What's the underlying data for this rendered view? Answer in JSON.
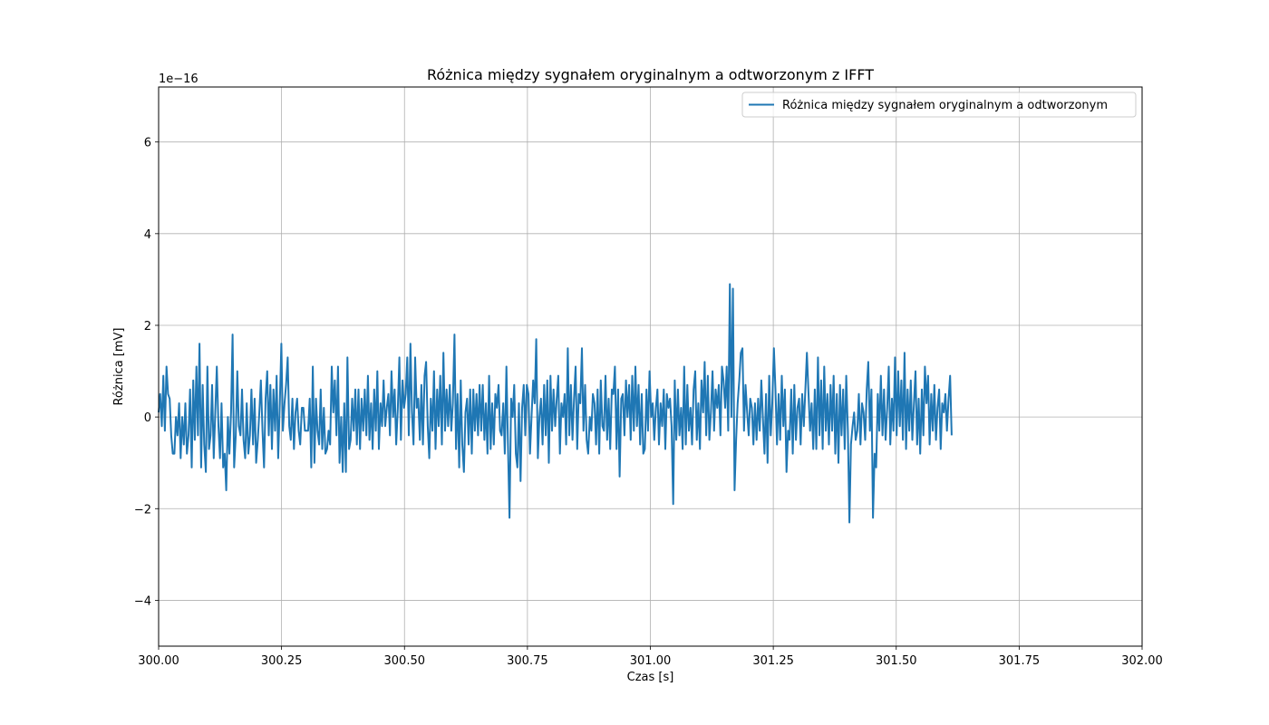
{
  "chart_data": {
    "type": "line",
    "title": "Różnica między sygnałem oryginalnym a odtworzonym z IFFT",
    "xlabel": "Czas [s]",
    "ylabel": "Różnica [mV]",
    "y_offset_label": "1e−16",
    "y_scale_factor": 1e-16,
    "xlim": [
      300.0,
      302.0
    ],
    "ylim": [
      -5.0,
      7.2
    ],
    "x_ticks": [
      300.0,
      300.25,
      300.5,
      300.75,
      301.0,
      301.25,
      301.5,
      301.75,
      302.0
    ],
    "x_tick_labels": [
      "300.00",
      "300.25",
      "300.50",
      "300.75",
      "301.00",
      "301.25",
      "301.50",
      "301.75",
      "302.00"
    ],
    "y_ticks": [
      -4,
      -2,
      0,
      2,
      4,
      6
    ],
    "y_tick_labels": [
      "−4",
      "−2",
      "0",
      "2",
      "4",
      "6"
    ],
    "grid": true,
    "legend_position": "top-right",
    "series": [
      {
        "name": "Różnica między sygnałem oryginalnym a odtworzonym",
        "color": "#1f77b4",
        "x_start": 300.0,
        "x_step": 0.0032,
        "values": [
          0.1,
          0.5,
          -0.2,
          0.9,
          -0.3,
          1.1,
          0.5,
          0.4,
          -0.4,
          -0.8,
          -0.8,
          0.0,
          -0.4,
          0.3,
          -0.9,
          0.0,
          -0.6,
          0.3,
          -0.8,
          -0.4,
          0.6,
          -1.1,
          0.8,
          -0.5,
          1.1,
          -0.4,
          1.6,
          -1.1,
          0.7,
          -0.6,
          -1.2,
          1.1,
          -0.7,
          -0.4,
          0.7,
          -0.9,
          0.1,
          1.1,
          -0.2,
          -0.9,
          0.3,
          -1.1,
          -0.8,
          -1.6,
          0.0,
          -0.8,
          0.1,
          1.8,
          -1.1,
          -0.4,
          1.0,
          -0.2,
          -0.4,
          0.6,
          -0.5,
          -0.9,
          0.3,
          -0.8,
          -0.4,
          0.6,
          -0.6,
          0.4,
          -1.0,
          -0.5,
          0.1,
          0.8,
          -0.3,
          -1.1,
          0.4,
          1.0,
          -0.4,
          0.7,
          -0.7,
          0.6,
          -0.3,
          0.9,
          -0.9,
          0.3,
          1.6,
          -0.3,
          0.3,
          0.7,
          1.3,
          -0.2,
          -0.5,
          0.4,
          -0.7,
          0.1,
          0.4,
          -0.3,
          -0.6,
          0.2,
          0.2,
          -0.3,
          -0.3,
          -0.3,
          0.4,
          -1.1,
          1.1,
          -1.0,
          0.4,
          -0.3,
          -0.6,
          0.6,
          -0.7,
          0.2,
          -0.8,
          -0.7,
          -0.3,
          -0.6,
          1.1,
          0.1,
          0.8,
          -0.4,
          1.1,
          -1.0,
          0.0,
          -1.2,
          0.3,
          -1.2,
          1.3,
          -0.7,
          -0.5,
          0.4,
          -0.3,
          0.6,
          -0.6,
          0.6,
          -0.7,
          0.4,
          -0.3,
          0.6,
          -0.4,
          0.9,
          -0.5,
          0.3,
          -0.7,
          0.6,
          -0.3,
          1.0,
          -0.7,
          0.3,
          -0.2,
          0.8,
          -0.2,
          0.2,
          0.5,
          -0.4,
          1.0,
          0.0,
          0.6,
          -0.6,
          0.2,
          1.3,
          -0.5,
          0.8,
          0.2,
          0.5,
          1.3,
          -0.4,
          1.6,
          0.1,
          -0.6,
          1.3,
          0.2,
          0.4,
          -0.5,
          0.7,
          -0.6,
          0.9,
          1.2,
          -0.2,
          -0.9,
          0.4,
          -0.3,
          1.0,
          -0.7,
          0.6,
          -0.2,
          0.9,
          -0.6,
          1.4,
          -0.3,
          0.6,
          -0.2,
          0.7,
          -0.3,
          0.3,
          1.8,
          -0.7,
          0.5,
          -1.1,
          0.8,
          -0.6,
          -1.2,
          0.1,
          0.4,
          -0.6,
          0.6,
          -0.8,
          0.6,
          -0.3,
          0.5,
          -0.4,
          0.7,
          -0.3,
          0.7,
          -0.5,
          0.3,
          -0.8,
          0.9,
          -0.7,
          0.3,
          -0.6,
          0.5,
          0.2,
          0.7,
          -0.3,
          -0.4,
          0.3,
          -0.8,
          1.1,
          -0.6,
          -2.2,
          0.4,
          0.0,
          0.7,
          -0.8,
          -1.1,
          0.3,
          -1.4,
          0.2,
          0.7,
          -0.4,
          0.7,
          0.5,
          -0.8,
          0.0,
          0.8,
          0.3,
          1.7,
          -0.9,
          0.0,
          0.4,
          -0.6,
          0.7,
          -0.4,
          0.8,
          -1.0,
          0.9,
          -0.3,
          0.6,
          -0.2,
          0.4,
          0.9,
          -0.8,
          0.3,
          0.0,
          0.5,
          -0.6,
          1.5,
          -0.4,
          0.7,
          -0.5,
          0.4,
          1.1,
          -0.7,
          0.5,
          0.3,
          1.5,
          -0.3,
          0.7,
          -0.5,
          -0.8,
          0.0,
          -0.3,
          0.5,
          0.3,
          -0.6,
          0.6,
          -0.8,
          0.8,
          -0.2,
          -0.3,
          0.9,
          -0.5,
          0.4,
          -0.7,
          0.6,
          0.5,
          1.1,
          -0.7,
          0.6,
          -1.3,
          0.4,
          0.5,
          -0.4,
          0.8,
          0.0,
          0.7,
          -0.5,
          0.9,
          -0.3,
          1.1,
          -0.2,
          0.7,
          -0.6,
          0.5,
          -0.8,
          -0.7,
          0.6,
          -0.3,
          1.0,
          0.0,
          0.3,
          -0.5,
          0.2,
          0.6,
          -0.6,
          0.3,
          -0.2,
          0.6,
          -0.7,
          0.5,
          0.2,
          0.4,
          -0.2,
          -1.9,
          0.8,
          -0.5,
          0.6,
          -0.4,
          0.2,
          -0.7,
          1.1,
          -0.6,
          0.7,
          -0.3,
          0.2,
          -0.6,
          0.6,
          1.0,
          -0.5,
          0.3,
          -0.7,
          0.8,
          0.1,
          1.2,
          -0.4,
          0.9,
          -0.5,
          0.1,
          1.0,
          -0.3,
          0.6,
          0.2,
          0.7,
          -0.4,
          1.1,
          0.8,
          0.2,
          1.1,
          -0.3,
          2.9,
          0.0,
          2.8,
          -1.6,
          -0.5,
          0.3,
          0.8,
          1.4,
          1.5,
          -0.3,
          0.7,
          0.1,
          -0.4,
          0.4,
          0.2,
          -0.6,
          0.3,
          -0.5,
          0.4,
          -0.3,
          0.8,
          0.0,
          -0.8,
          0.5,
          -1.0,
          0.9,
          -0.4,
          0.3,
          1.5,
          0.6,
          -0.6,
          0.5,
          -0.5,
          0.9,
          -0.2,
          0.6,
          -1.2,
          -0.3,
          -0.5,
          0.6,
          -0.8,
          0.7,
          -0.5,
          0.2,
          0.4,
          -0.6,
          0.5,
          -0.2,
          0.6,
          1.4,
          0.5,
          -0.3,
          0.3,
          -0.7,
          0.6,
          -0.7,
          1.3,
          -0.4,
          0.8,
          -0.7,
          1.1,
          -0.3,
          0.5,
          -0.6,
          0.7,
          -0.3,
          0.9,
          -0.8,
          0.5,
          -1.0,
          0.7,
          -0.4,
          0.6,
          -0.7,
          0.9,
          -0.3,
          -2.3,
          -0.6,
          -0.2,
          0.1,
          -0.5,
          -0.3,
          0.5,
          -0.6,
          0.3,
          0.1,
          -0.5,
          0.6,
          1.2,
          -0.3,
          0.6,
          -2.2,
          -0.8,
          -1.1,
          0.5,
          -0.3,
          0.9,
          -0.4,
          0.6,
          -0.5,
          0.2,
          1.1,
          -0.6,
          0.4,
          -0.3,
          1.3,
          -0.4,
          1.0,
          -0.2,
          0.8,
          -0.5,
          1.4,
          -0.7,
          0.6,
          -0.3,
          0.8,
          -0.5,
          0.3,
          1.0,
          -0.6,
          0.4,
          -0.8,
          0.6,
          -0.4,
          1.1,
          0.3,
          0.9,
          -0.6,
          0.5,
          -0.3,
          0.7,
          -0.5,
          0.2,
          0.6,
          -0.7,
          0.3,
          0.1,
          0.5,
          -0.3,
          0.4,
          0.9,
          -0.4
        ]
      }
    ]
  }
}
